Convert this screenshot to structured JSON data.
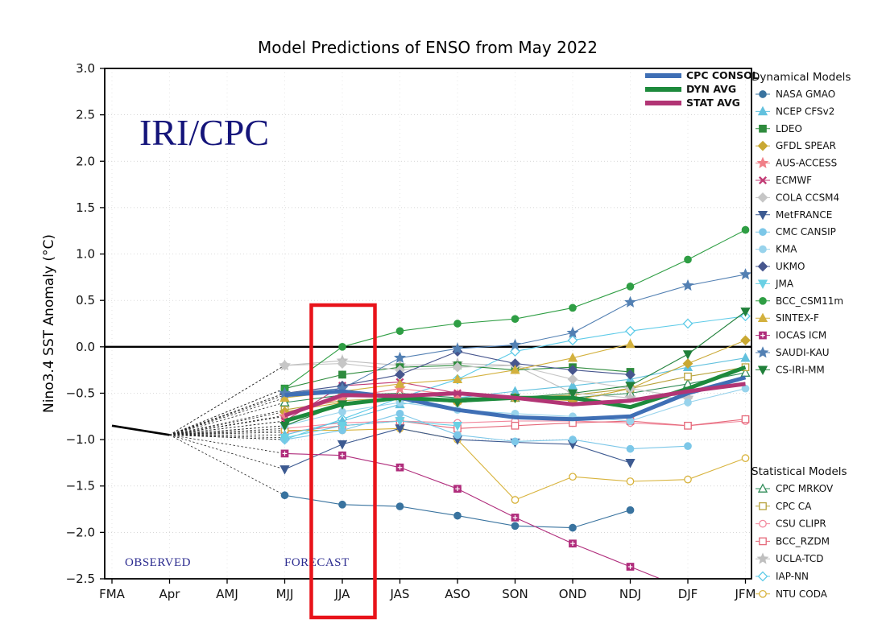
{
  "title": "Model Predictions of ENSO from May 2022",
  "watermark": "IRI/CPC",
  "observed_label": "OBSERVED",
  "forecast_label": "FORECAST",
  "legend": {
    "top": [
      {
        "label": "CPC CONSOL",
        "color": "#3f6fb5"
      },
      {
        "label": "DYN AVG",
        "color": "#1d8a3c"
      },
      {
        "label": "STAT AVG",
        "color": "#b23575"
      }
    ],
    "dynamical_header": "Dynamical Models",
    "statistical_header": "Statistical Models"
  },
  "highlight": {
    "category": "JJA",
    "color": "#e8131a"
  },
  "chart_data": {
    "type": "line",
    "title": "Model Predictions of ENSO from May 2022",
    "xlabel": "",
    "ylabel": "Nino3.4 SST Anomaly (°C)",
    "categories": [
      "FMA",
      "Apr",
      "AMJ",
      "MJJ",
      "JJA",
      "JAS",
      "ASO",
      "SON",
      "OND",
      "NDJ",
      "DJF",
      "JFM"
    ],
    "ylim": [
      -2.5,
      3.0
    ],
    "ytick_step": 0.5,
    "zero_line": true,
    "grid": true,
    "legend_position": "right",
    "observed": {
      "categories": [
        "FMA",
        "Apr"
      ],
      "values": [
        -0.85,
        -0.95
      ]
    },
    "forecast_start_category": "MJJ",
    "averages": [
      {
        "name": "CPC CONSOL",
        "color": "#3f6fb5",
        "values": [
          -0.52,
          -0.48,
          -0.55,
          -0.68,
          -0.76,
          -0.78,
          -0.75,
          -0.5,
          -0.33
        ]
      },
      {
        "name": "DYN AVG",
        "color": "#1d8a3c",
        "values": [
          -0.8,
          -0.62,
          -0.55,
          -0.58,
          -0.55,
          -0.55,
          -0.65,
          -0.45,
          -0.22
        ]
      },
      {
        "name": "STAT AVG",
        "color": "#b23575",
        "values": [
          -0.74,
          -0.52,
          -0.53,
          -0.5,
          -0.55,
          -0.62,
          -0.58,
          -0.48,
          -0.4
        ]
      }
    ],
    "dynamical_models": [
      {
        "name": "NASA GMAO",
        "color": "#39739f",
        "marker": "circle",
        "fill": "filled",
        "values": [
          -1.6,
          -1.7,
          -1.72,
          -1.82,
          -1.93,
          -1.95,
          -1.76,
          null,
          null
        ]
      },
      {
        "name": "NCEP CFSv2",
        "color": "#62c1de",
        "marker": "triangle-up",
        "fill": "filled",
        "values": [
          -0.95,
          -0.8,
          -0.62,
          -0.55,
          -0.48,
          -0.42,
          -0.35,
          -0.22,
          -0.12
        ]
      },
      {
        "name": "LDEO",
        "color": "#2e8b3d",
        "marker": "square",
        "fill": "filled",
        "values": [
          -0.45,
          -0.3,
          -0.22,
          -0.2,
          -0.25,
          -0.22,
          -0.27,
          null,
          null
        ]
      },
      {
        "name": "GFDL SPEAR",
        "color": "#c9a832",
        "marker": "diamond",
        "fill": "filled",
        "values": [
          -0.7,
          -0.6,
          -0.55,
          -0.6,
          -0.55,
          -0.58,
          -0.45,
          -0.18,
          0.07
        ]
      },
      {
        "name": "AUS-ACCESS",
        "color": "#f07f88",
        "marker": "star",
        "fill": "filled",
        "values": [
          -0.75,
          -0.55,
          -0.45,
          -0.52,
          null,
          null,
          null,
          null,
          null
        ]
      },
      {
        "name": "ECMWF",
        "color": "#c23b75",
        "marker": "x",
        "fill": "filled",
        "values": [
          -0.8,
          -0.42,
          -0.38,
          -0.5,
          null,
          null,
          null,
          null,
          null
        ]
      },
      {
        "name": "COLA CCSM4",
        "color": "#c6c6c6",
        "marker": "diamond",
        "fill": "filled",
        "values": [
          -0.2,
          -0.18,
          -0.25,
          -0.22,
          -0.2,
          -0.35,
          -0.45,
          -0.55,
          null
        ]
      },
      {
        "name": "MetFRANCE",
        "color": "#3d5a91",
        "marker": "triangle-down",
        "fill": "filled",
        "values": [
          -1.32,
          -1.05,
          -0.88,
          -1.0,
          -1.03,
          -1.05,
          -1.25,
          null,
          null
        ]
      },
      {
        "name": "CMC CANSIP",
        "color": "#7cc7e8",
        "marker": "circle",
        "fill": "filled",
        "values": [
          -1.0,
          -0.9,
          -0.72,
          -0.95,
          -1.02,
          -1.0,
          -1.1,
          -1.07,
          null
        ]
      },
      {
        "name": "KMA",
        "color": "#98d3ec",
        "marker": "circle",
        "fill": "filled",
        "values": [
          -0.85,
          -0.7,
          -0.6,
          -0.68,
          -0.72,
          -0.75,
          -0.8,
          -0.6,
          -0.45
        ]
      },
      {
        "name": "UKMO",
        "color": "#47568e",
        "marker": "diamond",
        "fill": "filled",
        "values": [
          -0.5,
          -0.42,
          -0.3,
          -0.05,
          -0.18,
          -0.25,
          -0.3,
          null,
          null
        ]
      },
      {
        "name": "JMA",
        "color": "#6ad0e4",
        "marker": "triangle-down",
        "fill": "filled",
        "values": [
          -0.98,
          -0.85,
          -0.8,
          -0.85,
          null,
          null,
          null,
          null,
          null
        ]
      },
      {
        "name": "BCC_CSM11m",
        "color": "#2f9e44",
        "marker": "circle",
        "fill": "filled",
        "values": [
          -0.45,
          0.0,
          0.17,
          0.25,
          0.3,
          0.42,
          0.65,
          0.94,
          1.26
        ]
      },
      {
        "name": "SINTEX-F",
        "color": "#d3b13e",
        "marker": "triangle-up",
        "fill": "filled",
        "values": [
          -0.55,
          -0.48,
          -0.4,
          -0.35,
          -0.25,
          -0.12,
          0.03,
          null,
          null
        ]
      },
      {
        "name": "IOCAS ICM",
        "color": "#b02d7c",
        "marker": "plus-square",
        "fill": "filled",
        "values": [
          -1.15,
          -1.17,
          -1.3,
          -1.53,
          -1.84,
          -2.12,
          -2.37,
          -2.62,
          null
        ]
      },
      {
        "name": "SAUDI-KAU",
        "color": "#5380b3",
        "marker": "star",
        "fill": "filled",
        "values": [
          -0.5,
          -0.45,
          -0.12,
          -0.02,
          0.02,
          0.15,
          0.48,
          0.66,
          0.78
        ]
      },
      {
        "name": "CS-IRI-MM",
        "color": "#20803a",
        "marker": "triangle-down",
        "fill": "filled",
        "values": [
          -0.85,
          -0.62,
          -0.55,
          -0.6,
          -0.55,
          -0.5,
          -0.42,
          -0.08,
          0.38
        ]
      }
    ],
    "statistical_models": [
      {
        "name": "CPC MRKOV",
        "color": "#2e8b57",
        "marker": "triangle-up",
        "fill": "open",
        "values": [
          -0.6,
          -0.52,
          -0.5,
          -0.55,
          -0.55,
          -0.55,
          -0.5,
          -0.4,
          -0.28
        ]
      },
      {
        "name": "CPC CA",
        "color": "#b8a33c",
        "marker": "square",
        "fill": "open",
        "values": [
          -0.68,
          -0.58,
          -0.55,
          -0.58,
          -0.55,
          -0.52,
          -0.45,
          -0.32,
          -0.22
        ]
      },
      {
        "name": "CSU CLIPR",
        "color": "#f2879c",
        "marker": "circle",
        "fill": "open",
        "values": [
          -0.88,
          -0.82,
          -0.8,
          -0.82,
          -0.8,
          -0.8,
          -0.82,
          -0.85,
          -0.8
        ]
      },
      {
        "name": "BCC_RZDM",
        "color": "#e5697a",
        "marker": "square",
        "fill": "open",
        "values": [
          -0.92,
          -0.85,
          -0.8,
          -0.88,
          -0.85,
          -0.82,
          -0.8,
          -0.85,
          -0.78
        ]
      },
      {
        "name": "UCLA-TCD",
        "color": "#bfbfbf",
        "marker": "star",
        "fill": "filled",
        "values": [
          -0.2,
          -0.15,
          -0.2,
          -0.18,
          -0.2,
          -0.5,
          -0.55,
          -0.55,
          null
        ]
      },
      {
        "name": "IAP-NN",
        "color": "#5ecbe8",
        "marker": "diamond",
        "fill": "open",
        "values": [
          -1.0,
          -0.78,
          -0.55,
          -0.35,
          -0.05,
          0.07,
          0.17,
          0.25,
          0.33
        ]
      },
      {
        "name": "NTU CODA",
        "color": "#d8b33c",
        "marker": "circle",
        "fill": "open",
        "values": [
          -0.9,
          -0.9,
          -0.88,
          -1.0,
          -1.65,
          -1.4,
          -1.45,
          -1.43,
          -1.2
        ]
      }
    ]
  }
}
